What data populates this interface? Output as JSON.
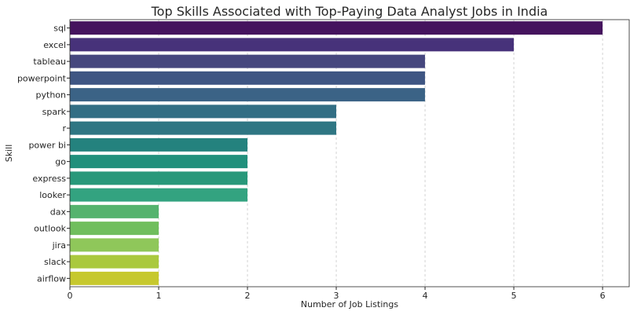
{
  "chart_data": {
    "type": "bar",
    "orientation": "horizontal",
    "title": "Top Skills Associated with Top-Paying Data Analyst Jobs in India",
    "xlabel": "Number of Job Listings",
    "ylabel": "Skill",
    "xlim": [
      0,
      6.3
    ],
    "xticks": [
      0,
      1,
      2,
      3,
      4,
      5,
      6
    ],
    "grid": "x",
    "categories": [
      "sql",
      "excel",
      "tableau",
      "powerpoint",
      "python",
      "spark",
      "r",
      "power bi",
      "go",
      "express",
      "looker",
      "dax",
      "outlook",
      "jira",
      "slack",
      "airflow"
    ],
    "values": [
      6,
      5,
      4,
      4,
      4,
      3,
      3,
      2,
      2,
      2,
      2,
      1,
      1,
      1,
      1,
      1
    ],
    "colors": [
      "#45145e",
      "#47327a",
      "#46477e",
      "#3f5683",
      "#3b6386",
      "#326e84",
      "#2f7683",
      "#24827e",
      "#21907c",
      "#28987a",
      "#33a380",
      "#55b36e",
      "#70be5d",
      "#8fc75a",
      "#aac93e",
      "#c6c82e"
    ]
  }
}
